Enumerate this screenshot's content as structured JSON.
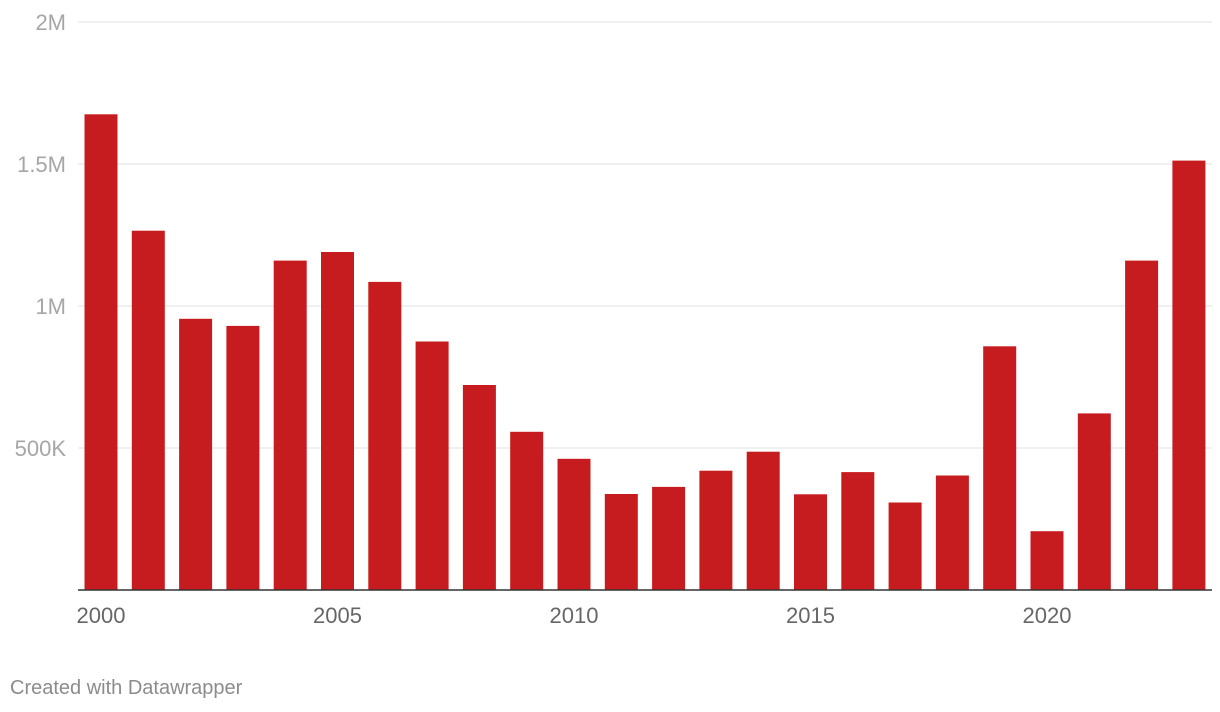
{
  "chart_data": {
    "type": "bar",
    "categories": [
      "2000",
      "2001",
      "2002",
      "2003",
      "2004",
      "2005",
      "2006",
      "2007",
      "2008",
      "2009",
      "2010",
      "2011",
      "2012",
      "2013",
      "2014",
      "2015",
      "2016",
      "2017",
      "2018",
      "2019",
      "2020",
      "2021",
      "2022",
      "2023"
    ],
    "values": [
      1675000,
      1265000,
      955000,
      930000,
      1160000,
      1190000,
      1085000,
      875000,
      722000,
      557000,
      462000,
      338000,
      363000,
      420000,
      487000,
      337000,
      415000,
      308000,
      403000,
      858000,
      207000,
      622000,
      1160000,
      1512000
    ],
    "ylim": [
      0,
      2000000
    ],
    "y_ticks": [
      {
        "value": 500000,
        "label": "500K"
      },
      {
        "value": 1000000,
        "label": "1M"
      },
      {
        "value": 1500000,
        "label": "1.5M"
      },
      {
        "value": 2000000,
        "label": "2M"
      }
    ],
    "x_tick_labels": [
      "2000",
      "2005",
      "2010",
      "2015",
      "2020"
    ],
    "grid": true,
    "bar_color": "#c71c1f",
    "grid_color": "#e0e0e0",
    "axis_color": "#333333"
  },
  "footer": {
    "credit": "Created with Datawrapper"
  }
}
